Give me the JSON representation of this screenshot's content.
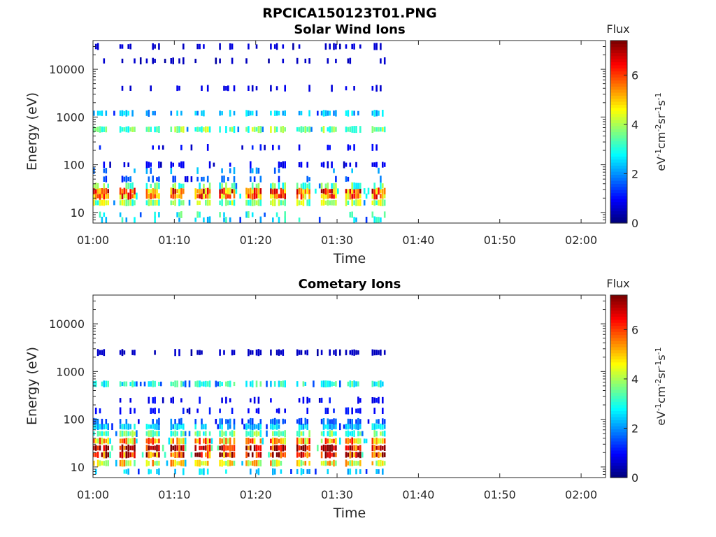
{
  "figure_title": "RPCICA150123T01.PNG",
  "chart_data": [
    {
      "type": "heatmap",
      "title": "Solar Wind Ions",
      "xlabel": "Time",
      "ylabel": "Energy (eV)",
      "y_scale": "log",
      "ylim": [
        6,
        40000
      ],
      "x_ticks": [
        "01:00",
        "01:10",
        "01:20",
        "01:30",
        "01:40",
        "01:50",
        "02:00"
      ],
      "x_range_minutes": [
        0,
        63
      ],
      "data_extent_minutes": [
        0,
        36
      ],
      "y_ticks": [
        "10",
        "100",
        "1000",
        "10000"
      ],
      "colorbar": {
        "label": "Flux",
        "units": "eV-1cm-2sr-1s-1",
        "range": [
          0,
          7.4
        ],
        "ticks": [
          "0",
          "2",
          "4",
          "6"
        ]
      },
      "sweep_starts_minutes": [
        0,
        3.2,
        6.3,
        9.3,
        12.4,
        15.5,
        18.6,
        21.7,
        24.8,
        27.9,
        31.0,
        34.1
      ],
      "profile": [
        {
          "energy_eV": 7,
          "flux": 2.6,
          "presence": 0.25
        },
        {
          "energy_eV": 9,
          "flux": 3.0,
          "presence": 0.3
        },
        {
          "energy_eV": 16,
          "flux": 3.8,
          "presence": 0.9
        },
        {
          "energy_eV": 22,
          "flux": 5.5,
          "presence": 0.95
        },
        {
          "energy_eV": 28,
          "flux": 5.8,
          "presence": 0.95
        },
        {
          "energy_eV": 36,
          "flux": 3.4,
          "presence": 0.6
        },
        {
          "energy_eV": 50,
          "flux": 1.5,
          "presence": 0.3
        },
        {
          "energy_eV": 75,
          "flux": 2.0,
          "presence": 0.25
        },
        {
          "energy_eV": 100,
          "flux": 0.8,
          "presence": 0.3
        },
        {
          "energy_eV": 230,
          "flux": 1.0,
          "presence": 0.25
        },
        {
          "energy_eV": 550,
          "flux": 3.6,
          "presence": 0.9
        },
        {
          "energy_eV": 1200,
          "flux": 2.3,
          "presence": 0.6
        },
        {
          "energy_eV": 4000,
          "flux": 0.7,
          "presence": 0.3
        },
        {
          "energy_eV": 15000,
          "flux": 0.5,
          "presence": 0.25
        },
        {
          "energy_eV": 30000,
          "flux": 0.6,
          "presence": 0.3
        }
      ]
    },
    {
      "type": "heatmap",
      "title": "Cometary Ions",
      "xlabel": "Time",
      "ylabel": "Energy (eV)",
      "y_scale": "log",
      "ylim": [
        6,
        40000
      ],
      "x_ticks": [
        "01:00",
        "01:10",
        "01:20",
        "01:30",
        "01:40",
        "01:50",
        "02:00"
      ],
      "x_range_minutes": [
        0,
        63
      ],
      "data_extent_minutes": [
        0,
        36
      ],
      "y_ticks": [
        "10",
        "100",
        "1000",
        "10000"
      ],
      "colorbar": {
        "label": "Flux",
        "units": "eV-1cm-2sr-1s-1",
        "range": [
          0,
          7.4
        ],
        "ticks": [
          "0",
          "2",
          "4",
          "6"
        ]
      },
      "sweep_starts_minutes": [
        0,
        3.2,
        6.3,
        9.3,
        12.4,
        15.5,
        18.6,
        21.7,
        24.8,
        27.9,
        31.0,
        34.1
      ],
      "profile": [
        {
          "energy_eV": 8,
          "flux": 2.4,
          "presence": 0.3
        },
        {
          "energy_eV": 12,
          "flux": 4.6,
          "presence": 0.9
        },
        {
          "energy_eV": 18,
          "flux": 6.4,
          "presence": 0.95
        },
        {
          "energy_eV": 25,
          "flux": 7.0,
          "presence": 0.95
        },
        {
          "energy_eV": 35,
          "flux": 5.2,
          "presence": 0.95
        },
        {
          "energy_eV": 50,
          "flux": 3.5,
          "presence": 0.9
        },
        {
          "energy_eV": 70,
          "flux": 2.4,
          "presence": 0.85
        },
        {
          "energy_eV": 90,
          "flux": 1.6,
          "presence": 0.6
        },
        {
          "energy_eV": 150,
          "flux": 1.0,
          "presence": 0.4
        },
        {
          "energy_eV": 250,
          "flux": 0.9,
          "presence": 0.3
        },
        {
          "energy_eV": 550,
          "flux": 3.0,
          "presence": 0.85
        },
        {
          "energy_eV": 2500,
          "flux": 0.5,
          "presence": 0.5
        }
      ]
    }
  ]
}
